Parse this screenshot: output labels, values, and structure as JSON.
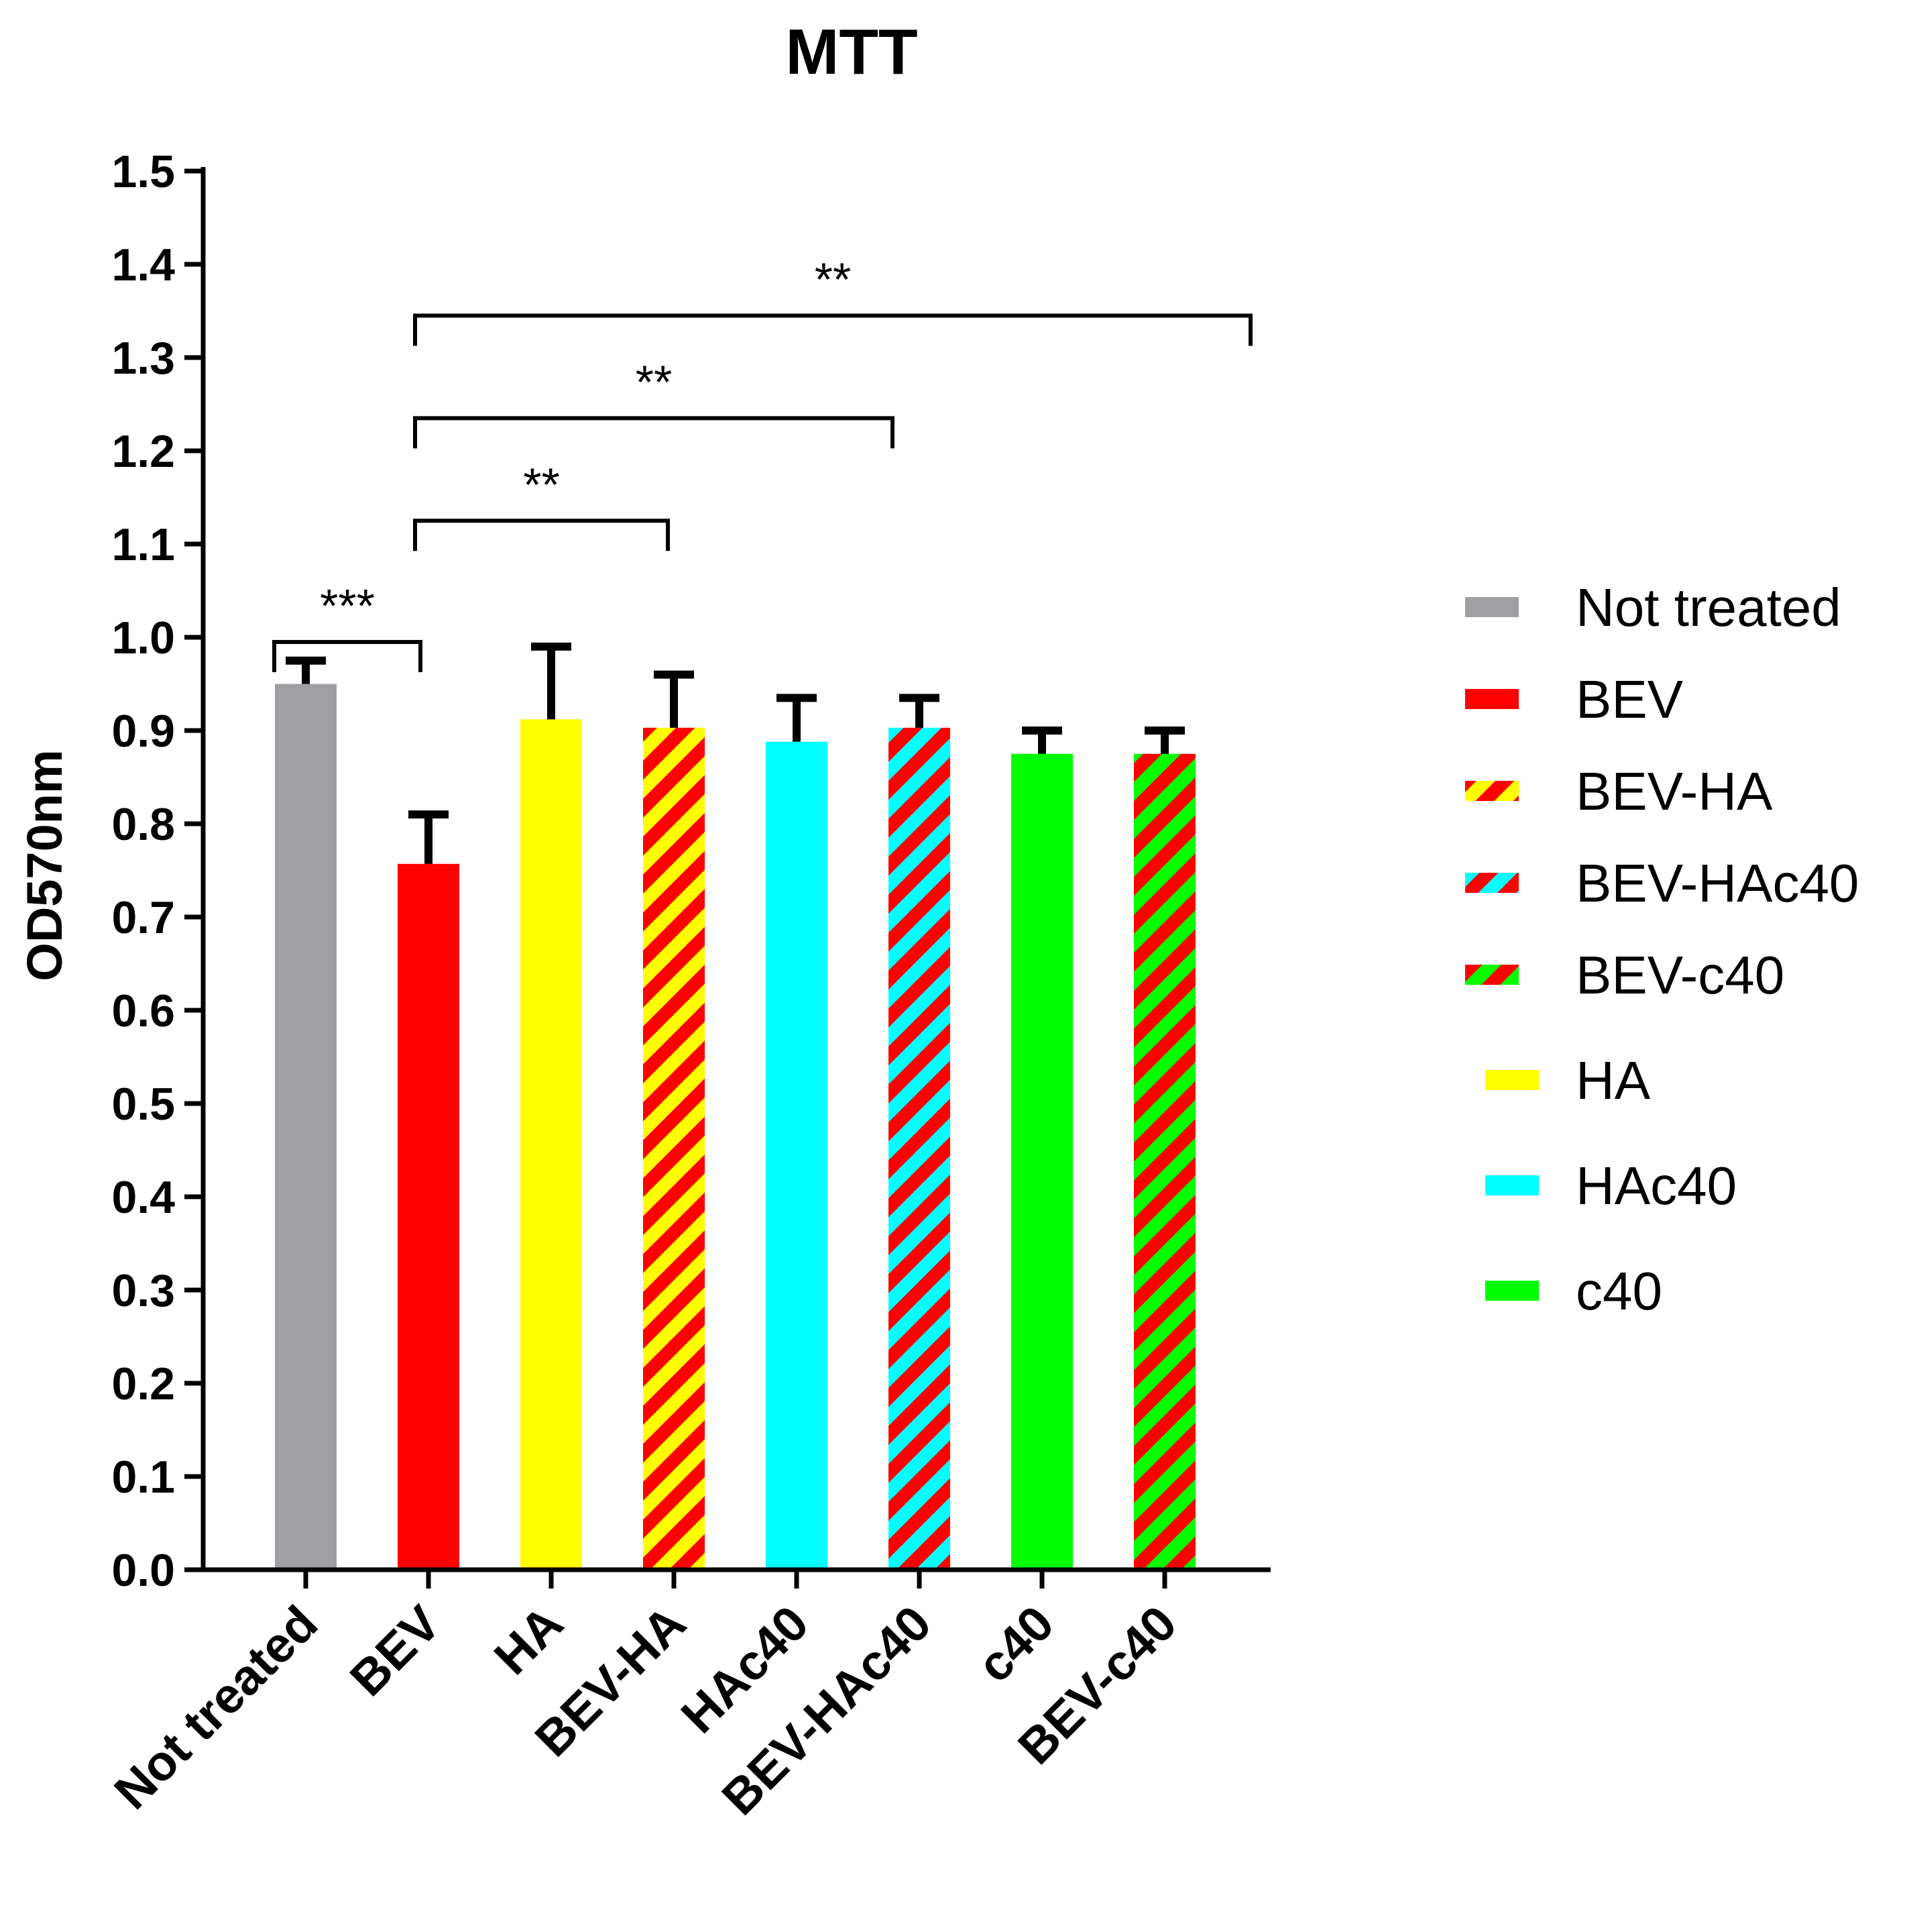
{
  "chart_data": {
    "type": "bar",
    "title": "MTT",
    "xlabel": "",
    "ylabel": "OD570nm",
    "ylim": [
      0,
      1.5
    ],
    "yticks": [
      "0.0",
      "0.1",
      "0.2",
      "0.3",
      "0.4",
      "0.5",
      "0.6",
      "0.7",
      "0.8",
      "0.9",
      "1.0",
      "1.1",
      "1.2",
      "1.3",
      "1.4",
      "1.5"
    ],
    "categories": [
      "Not treated",
      "BEV",
      "HA",
      "BEV-HA",
      "HAc40",
      "BEV-HAc40",
      "c40",
      "BEV-c40"
    ],
    "values": [
      0.95,
      0.757,
      0.912,
      0.903,
      0.888,
      0.903,
      0.875,
      0.875
    ],
    "error_upper": [
      0.975,
      0.81,
      0.99,
      0.96,
      0.935,
      0.935,
      0.9,
      0.9
    ],
    "bar_styles": [
      {
        "fill": "#a09fa4",
        "stripe": null
      },
      {
        "fill": "#ff0000",
        "stripe": null
      },
      {
        "fill": "#ffff00",
        "stripe": null
      },
      {
        "fill": "#ffff00",
        "stripe": "#ff0000"
      },
      {
        "fill": "#00ffff",
        "stripe": null
      },
      {
        "fill": "#00ffff",
        "stripe": "#ff0000"
      },
      {
        "fill": "#00ff00",
        "stripe": null
      },
      {
        "fill": "#00ff00",
        "stripe": "#ff0000"
      }
    ],
    "significance": [
      {
        "from": 0,
        "to": 1,
        "label": "***",
        "level": 0.995
      },
      {
        "from": 1,
        "to": 3,
        "label": "**",
        "level": 1.125
      },
      {
        "from": 1,
        "to": 5,
        "label": "**",
        "level": 1.235
      },
      {
        "from": 1,
        "to": 7,
        "label": "**",
        "level": 1.345
      }
    ],
    "legend": [
      {
        "label": "Not treated",
        "fill": "#a09fa4",
        "stripe": null
      },
      {
        "label": "BEV",
        "fill": "#ff0000",
        "stripe": null
      },
      {
        "label": "BEV-HA",
        "fill": "#ffff00",
        "stripe": "#ff0000"
      },
      {
        "label": "BEV-HAc40",
        "fill": "#00ffff",
        "stripe": "#ff0000"
      },
      {
        "label": "BEV-c40",
        "fill": "#00ff00",
        "stripe": "#ff0000"
      },
      {
        "label": " HA",
        "fill": "#ffff00",
        "stripe": null
      },
      {
        "label": " HAc40",
        "fill": "#00ffff",
        "stripe": null
      },
      {
        "label": " c40",
        "fill": "#00ff00",
        "stripe": null
      }
    ],
    "legend_position": "right"
  }
}
